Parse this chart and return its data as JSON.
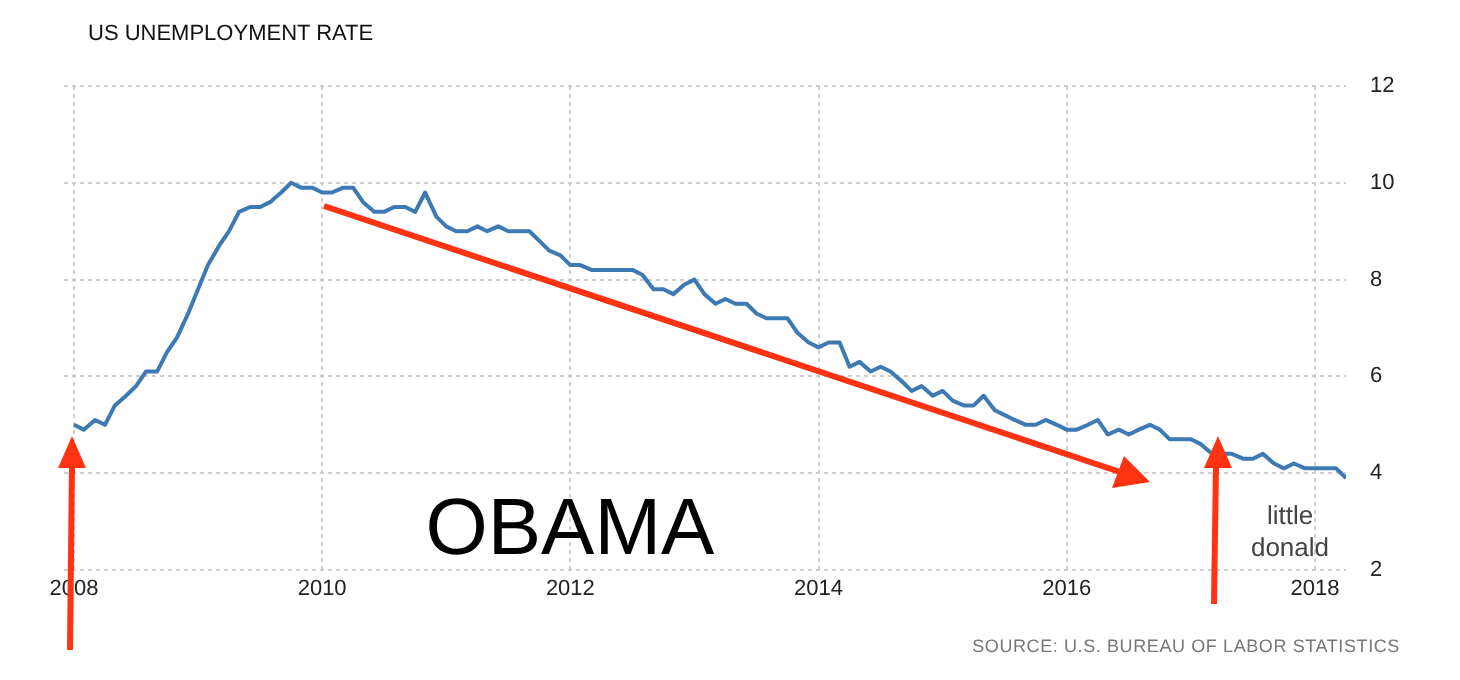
{
  "chart_data": {
    "type": "line",
    "title": "US UNEMPLOYMENT RATE",
    "x": [
      2008,
      2008.08,
      2008.17,
      2008.25,
      2008.33,
      2008.42,
      2008.5,
      2008.58,
      2008.67,
      2008.75,
      2008.83,
      2008.92,
      2009,
      2009.08,
      2009.17,
      2009.25,
      2009.33,
      2009.42,
      2009.5,
      2009.58,
      2009.67,
      2009.75,
      2009.83,
      2009.92,
      2010,
      2010.08,
      2010.17,
      2010.25,
      2010.33,
      2010.42,
      2010.5,
      2010.58,
      2010.67,
      2010.75,
      2010.83,
      2010.92,
      2011,
      2011.08,
      2011.17,
      2011.25,
      2011.33,
      2011.42,
      2011.5,
      2011.58,
      2011.67,
      2011.75,
      2011.83,
      2011.92,
      2012,
      2012.08,
      2012.17,
      2012.25,
      2012.33,
      2012.42,
      2012.5,
      2012.58,
      2012.67,
      2012.75,
      2012.83,
      2012.92,
      2013,
      2013.08,
      2013.17,
      2013.25,
      2013.33,
      2013.42,
      2013.5,
      2013.58,
      2013.67,
      2013.75,
      2013.83,
      2013.92,
      2014,
      2014.08,
      2014.17,
      2014.25,
      2014.33,
      2014.42,
      2014.5,
      2014.58,
      2014.67,
      2014.75,
      2014.83,
      2014.92,
      2015,
      2015.08,
      2015.17,
      2015.25,
      2015.33,
      2015.42,
      2015.5,
      2015.58,
      2015.67,
      2015.75,
      2015.83,
      2015.92,
      2016,
      2016.08,
      2016.17,
      2016.25,
      2016.33,
      2016.42,
      2016.5,
      2016.58,
      2016.67,
      2016.75,
      2016.83,
      2016.92,
      2017,
      2017.08,
      2017.17,
      2017.25,
      2017.33,
      2017.42,
      2017.5,
      2017.58,
      2017.67,
      2017.75,
      2017.83,
      2017.92,
      2018,
      2018.08,
      2018.17,
      2018.25
    ],
    "series": [
      {
        "color": "#3d7ab3",
        "values": [
          5.0,
          4.9,
          5.1,
          5.0,
          5.4,
          5.6,
          5.8,
          6.1,
          6.1,
          6.5,
          6.8,
          7.3,
          7.8,
          8.3,
          8.7,
          9.0,
          9.4,
          9.5,
          9.5,
          9.6,
          9.8,
          10.0,
          9.9,
          9.9,
          9.8,
          9.8,
          9.9,
          9.9,
          9.6,
          9.4,
          9.4,
          9.5,
          9.5,
          9.4,
          9.8,
          9.3,
          9.1,
          9.0,
          9.0,
          9.1,
          9.0,
          9.1,
          9.0,
          9.0,
          9.0,
          8.8,
          8.6,
          8.5,
          8.3,
          8.3,
          8.2,
          8.2,
          8.2,
          8.2,
          8.2,
          8.1,
          7.8,
          7.8,
          7.7,
          7.9,
          8.0,
          7.7,
          7.5,
          7.6,
          7.5,
          7.5,
          7.3,
          7.2,
          7.2,
          7.2,
          6.9,
          6.7,
          6.6,
          6.7,
          6.7,
          6.2,
          6.3,
          6.1,
          6.2,
          6.1,
          5.9,
          5.7,
          5.8,
          5.6,
          5.7,
          5.5,
          5.4,
          5.4,
          5.6,
          5.3,
          5.2,
          5.1,
          5.0,
          5.0,
          5.1,
          5.0,
          4.9,
          4.9,
          5.0,
          5.1,
          4.8,
          4.9,
          4.8,
          4.9,
          5.0,
          4.9,
          4.7,
          4.7,
          4.7,
          4.6,
          4.4,
          4.4,
          4.4,
          4.3,
          4.3,
          4.4,
          4.2,
          4.1,
          4.2,
          4.1,
          4.1,
          4.1,
          4.1,
          3.9
        ]
      }
    ],
    "xlim": [
      2007.92,
      2018.25
    ],
    "xticks": [
      2008,
      2010,
      2012,
      2014,
      2016,
      2018
    ],
    "ylim": [
      2,
      12
    ],
    "yticks": [
      2,
      4,
      6,
      8,
      10,
      12
    ],
    "grid": true,
    "legend": false,
    "marker": "none",
    "line_style": "solid",
    "annotations": [
      "OBAMA",
      "little donald",
      "SOURCE: U.S. BUREAU OF LABOR STATISTICS"
    ]
  }
}
